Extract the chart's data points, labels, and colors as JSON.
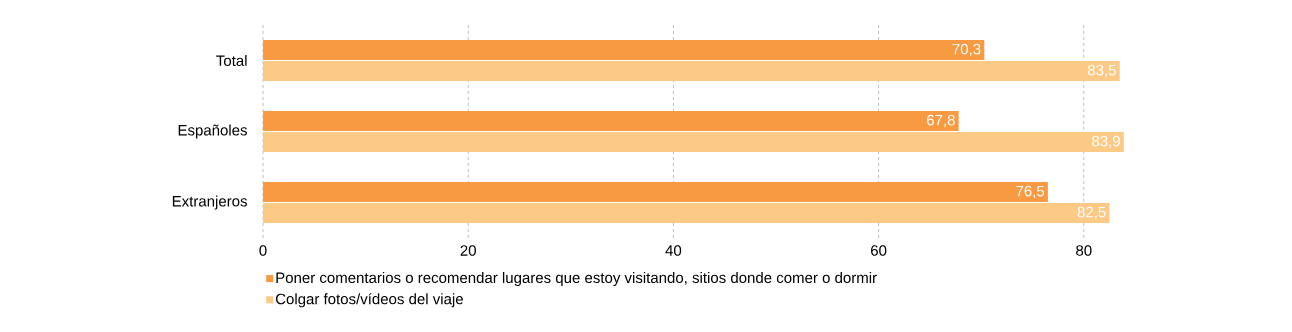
{
  "chart_data": {
    "type": "bar",
    "orientation": "horizontal",
    "categories": [
      "Total",
      "Españoles",
      "Extranjeros"
    ],
    "series": [
      {
        "name": "Poner comentarios o recomendar lugares que estoy visitando, sitios donde comer o dormir",
        "color": "#f89a41",
        "values": [
          70.3,
          67.8,
          76.5
        ],
        "value_labels": [
          "70,3",
          "67,8",
          "76,5"
        ]
      },
      {
        "name": "Colgar fotos/vídeos del viaje",
        "color": "#fdca86",
        "values": [
          83.5,
          83.9,
          82.5
        ],
        "value_labels": [
          "83,5",
          "83,9",
          "82,5"
        ]
      }
    ],
    "xlim": [
      0,
      84
    ],
    "xticks": [
      0,
      20,
      40,
      60,
      80
    ],
    "grid": "x",
    "legend": "bottom left",
    "marker": "square"
  }
}
